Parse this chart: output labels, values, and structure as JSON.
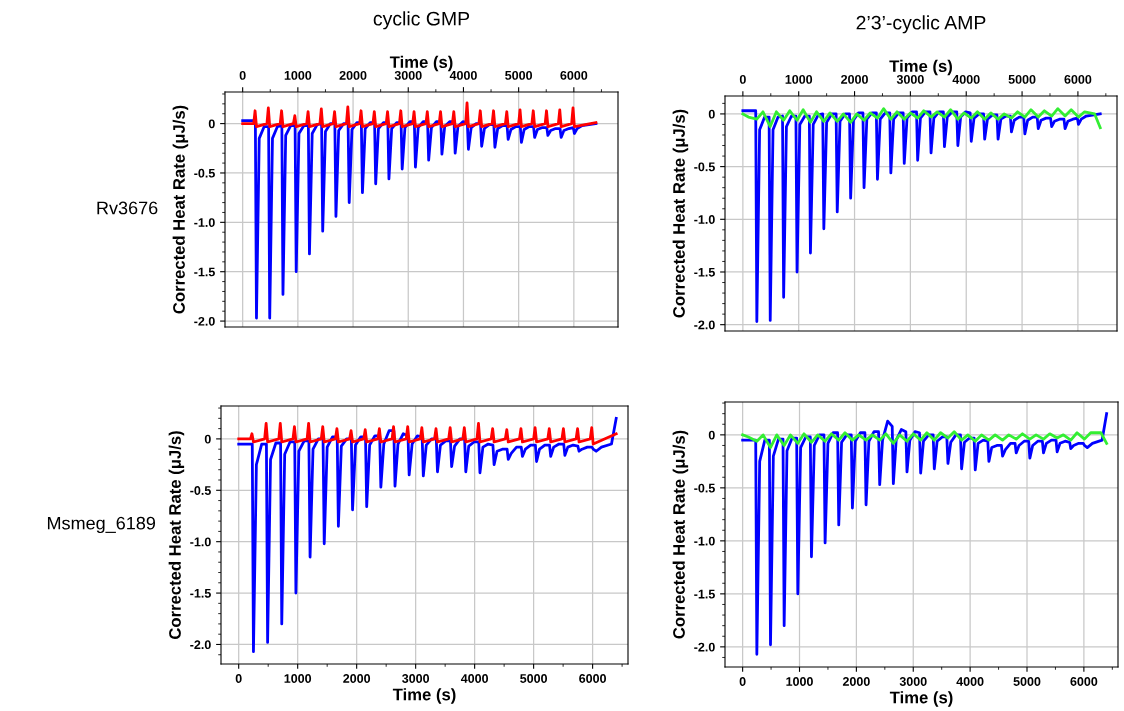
{
  "chart_data": [
    {
      "type": "line",
      "title": "cyclic GMP",
      "xlabel": "Time (s)",
      "ylabel": "Corrected Heat Rate (μJ/s)",
      "annotations": [
        "Rv3676"
      ],
      "xlim": [
        -320,
        6800
      ],
      "xticks": [
        0,
        1000,
        2000,
        3000,
        4000,
        5000,
        6000
      ],
      "ylim": [
        -2.06,
        0.32
      ],
      "yticks": [
        {
          "value": -2.0,
          "label": "-2.0"
        },
        {
          "value": -1.5,
          "label": "-1.5"
        },
        {
          "value": -1.0,
          "label": "-1.0"
        },
        {
          "value": -0.5,
          "label": "-0.5"
        },
        0
      ],
      "grid": true,
      "marker": "none",
      "line_style": "solid",
      "series": [
        {
          "color": "#0000ff",
          "x": [
            0,
            230,
            250,
            300,
            390,
            470,
            490,
            540,
            630,
            710,
            730,
            780,
            870,
            950,
            970,
            1020,
            1110,
            1190,
            1210,
            1260,
            1350,
            1430,
            1450,
            1500,
            1590,
            1670,
            1690,
            1740,
            1830,
            1910,
            1930,
            1980,
            2070,
            2150,
            2170,
            2220,
            2310,
            2390,
            2410,
            2460,
            2550,
            2630,
            2650,
            2700,
            2790,
            2870,
            2890,
            2940,
            3030,
            3110,
            3130,
            3180,
            3270,
            3350,
            3370,
            3420,
            3510,
            3590,
            3610,
            3660,
            3750,
            3830,
            3850,
            3900,
            3990,
            4070,
            4090,
            4140,
            4230,
            4310,
            4330,
            4380,
            4470,
            4550,
            4570,
            4620,
            4710,
            4790,
            4810,
            4860,
            4950,
            5030,
            5050,
            5100,
            5190,
            5270,
            5290,
            5340,
            5430,
            5510,
            5530,
            5580,
            5670,
            5750,
            5770,
            5820,
            5910,
            5990,
            6010,
            6060,
            6150,
            6400
          ],
          "values": [
            0.03,
            0.03,
            -1.97,
            -0.15,
            -0.03,
            -0.03,
            -1.97,
            -0.15,
            -0.03,
            -0.02,
            -1.73,
            -0.12,
            -0.02,
            -0.02,
            -1.5,
            -0.1,
            -0.02,
            -0.02,
            -1.32,
            -0.1,
            -0.01,
            0.0,
            -1.09,
            -0.08,
            0.0,
            0.0,
            -0.94,
            -0.07,
            0.0,
            0.0,
            -0.8,
            -0.06,
            0.01,
            0.01,
            -0.7,
            -0.05,
            0.01,
            0.01,
            -0.61,
            -0.05,
            0.01,
            0.01,
            -0.56,
            -0.05,
            0.01,
            0.01,
            -0.46,
            -0.04,
            0.02,
            0.02,
            -0.44,
            -0.04,
            0.02,
            0.02,
            -0.37,
            -0.04,
            0.02,
            0.02,
            -0.31,
            -0.03,
            0.02,
            0.02,
            -0.3,
            -0.03,
            0.02,
            0.01,
            -0.26,
            -0.04,
            0.0,
            0.0,
            -0.23,
            -0.05,
            -0.01,
            -0.01,
            -0.24,
            -0.05,
            -0.02,
            -0.02,
            -0.16,
            -0.06,
            -0.03,
            -0.03,
            -0.19,
            -0.06,
            -0.03,
            -0.03,
            -0.14,
            -0.06,
            -0.04,
            -0.04,
            -0.12,
            -0.07,
            -0.05,
            -0.05,
            -0.14,
            -0.07,
            -0.05,
            -0.04,
            -0.1,
            -0.05,
            -0.02,
            0.0
          ]
        },
        {
          "color": "#ff0000",
          "x": [
            0,
            200,
            225,
            250,
            440,
            465,
            490,
            680,
            705,
            730,
            920,
            945,
            970,
            1160,
            1185,
            1210,
            1400,
            1425,
            1450,
            1640,
            1665,
            1690,
            1880,
            1905,
            1930,
            2120,
            2145,
            2170,
            2360,
            2385,
            2410,
            2600,
            2625,
            2650,
            2840,
            2865,
            2890,
            3080,
            3105,
            3130,
            3320,
            3345,
            3370,
            3560,
            3585,
            3610,
            3800,
            3825,
            3850,
            4040,
            4065,
            4090,
            4280,
            4305,
            4330,
            4520,
            4545,
            4570,
            4760,
            4785,
            4810,
            5000,
            5025,
            5050,
            5240,
            5265,
            5290,
            5480,
            5505,
            5530,
            5720,
            5745,
            5770,
            5960,
            5985,
            6010,
            6400
          ],
          "values": [
            0.0,
            0.0,
            0.13,
            -0.03,
            0.0,
            0.16,
            -0.03,
            0.0,
            0.13,
            -0.03,
            0.0,
            0.08,
            -0.03,
            0.0,
            0.12,
            -0.03,
            0.0,
            0.15,
            -0.03,
            0.0,
            0.12,
            -0.03,
            0.0,
            0.17,
            -0.03,
            0.0,
            0.13,
            -0.03,
            0.0,
            0.12,
            -0.03,
            0.0,
            0.12,
            -0.03,
            0.0,
            0.13,
            -0.03,
            0.0,
            0.12,
            -0.03,
            0.0,
            0.12,
            -0.03,
            0.0,
            0.12,
            -0.03,
            0.0,
            0.12,
            -0.03,
            0.0,
            0.21,
            -0.03,
            0.0,
            0.13,
            -0.03,
            0.0,
            0.13,
            -0.03,
            0.0,
            0.12,
            -0.03,
            0.0,
            0.14,
            -0.03,
            0.0,
            0.13,
            -0.03,
            0.0,
            0.13,
            -0.03,
            0.0,
            0.14,
            -0.03,
            0.0,
            0.16,
            -0.03,
            0.01
          ]
        }
      ]
    },
    {
      "type": "line",
      "title": "2’3’-cyclic AMP",
      "xlabel": "Time (s)",
      "ylabel": "Corrected Heat Rate (μJ/s)",
      "xlim": [
        -320,
        6700
      ],
      "xticks": [
        0,
        1000,
        2000,
        3000,
        4000,
        5000,
        6000
      ],
      "ylim": [
        -2.06,
        0.17
      ],
      "yticks": [
        {
          "value": -2.0,
          "label": "-2.0"
        },
        {
          "value": -1.5,
          "label": "-1.5"
        },
        {
          "value": -1.0,
          "label": "-1.0"
        },
        {
          "value": -0.5,
          "label": "-0.5"
        },
        0
      ],
      "grid": true,
      "marker": "none",
      "line_style": "solid",
      "series": [
        {
          "color": "#0000ff",
          "x": [
            0,
            230,
            250,
            300,
            390,
            470,
            490,
            540,
            630,
            710,
            730,
            780,
            870,
            950,
            970,
            1020,
            1110,
            1190,
            1210,
            1260,
            1350,
            1430,
            1450,
            1500,
            1590,
            1670,
            1690,
            1740,
            1830,
            1910,
            1930,
            1980,
            2070,
            2150,
            2170,
            2220,
            2310,
            2390,
            2410,
            2460,
            2550,
            2630,
            2650,
            2700,
            2790,
            2870,
            2890,
            2940,
            3030,
            3110,
            3130,
            3180,
            3270,
            3350,
            3370,
            3420,
            3510,
            3590,
            3610,
            3660,
            3750,
            3830,
            3850,
            3900,
            3990,
            4070,
            4090,
            4140,
            4230,
            4310,
            4330,
            4380,
            4470,
            4550,
            4570,
            4620,
            4710,
            4790,
            4810,
            4860,
            4950,
            5030,
            5050,
            5100,
            5190,
            5270,
            5290,
            5340,
            5430,
            5510,
            5530,
            5580,
            5670,
            5750,
            5770,
            5820,
            5910,
            5990,
            6010,
            6060,
            6150,
            6400
          ],
          "values": [
            0.03,
            0.03,
            -1.97,
            -0.15,
            -0.03,
            -0.03,
            -1.96,
            -0.15,
            -0.03,
            -0.02,
            -1.74,
            -0.12,
            -0.02,
            -0.02,
            -1.5,
            -0.1,
            -0.02,
            -0.02,
            -1.32,
            -0.1,
            -0.01,
            0.0,
            -1.09,
            -0.08,
            0.0,
            0.0,
            -0.93,
            -0.07,
            0.0,
            0.0,
            -0.8,
            -0.06,
            0.01,
            0.01,
            -0.7,
            -0.05,
            0.01,
            0.01,
            -0.62,
            -0.05,
            0.01,
            0.01,
            -0.56,
            -0.05,
            0.01,
            0.01,
            -0.47,
            -0.04,
            0.02,
            0.02,
            -0.44,
            -0.04,
            0.02,
            0.02,
            -0.37,
            -0.04,
            0.02,
            0.02,
            -0.31,
            -0.03,
            0.02,
            0.02,
            -0.3,
            -0.03,
            0.02,
            0.01,
            -0.26,
            -0.04,
            0.0,
            0.0,
            -0.24,
            -0.05,
            -0.01,
            -0.01,
            -0.24,
            -0.05,
            -0.02,
            -0.02,
            -0.17,
            -0.06,
            -0.03,
            -0.03,
            -0.19,
            -0.06,
            -0.03,
            -0.03,
            -0.14,
            -0.06,
            -0.04,
            -0.04,
            -0.12,
            -0.07,
            -0.05,
            -0.05,
            -0.14,
            -0.07,
            -0.05,
            -0.04,
            -0.1,
            -0.05,
            -0.02,
            0.0
          ]
        },
        {
          "color": "#33ee33",
          "x": [
            0,
            100,
            250,
            360,
            490,
            600,
            730,
            840,
            970,
            1080,
            1210,
            1320,
            1450,
            1560,
            1690,
            1800,
            1930,
            2040,
            2170,
            2280,
            2410,
            2520,
            2650,
            2760,
            2890,
            3000,
            3130,
            3240,
            3370,
            3480,
            3610,
            3720,
            3850,
            3960,
            4090,
            4200,
            4330,
            4440,
            4570,
            4680,
            4810,
            4920,
            5050,
            5160,
            5290,
            5400,
            5530,
            5640,
            5770,
            5880,
            6010,
            6120,
            6300,
            6400
          ],
          "values": [
            0.0,
            -0.03,
            -0.05,
            0.02,
            -0.12,
            0.02,
            -0.06,
            0.03,
            -0.06,
            0.04,
            -0.08,
            0.02,
            -0.07,
            0.01,
            -0.07,
            0.0,
            -0.08,
            0.0,
            -0.06,
            0.01,
            -0.04,
            0.05,
            -0.05,
            0.02,
            -0.05,
            0.01,
            -0.04,
            0.03,
            -0.03,
            0.02,
            -0.03,
            0.04,
            -0.05,
            0.01,
            -0.04,
            0.02,
            -0.05,
            0.01,
            -0.05,
            0.0,
            -0.04,
            0.02,
            -0.03,
            0.04,
            -0.03,
            0.03,
            -0.02,
            0.05,
            -0.02,
            0.04,
            -0.03,
            0.02,
            0.0,
            -0.13
          ]
        }
      ]
    },
    {
      "type": "line",
      "xlabel": "Time (s)",
      "ylabel": "Corrected Heat Rate (μJ/s)",
      "annotations": [
        "Msmeg_6189"
      ],
      "xlim": [
        -300,
        6600
      ],
      "xticks": [
        0,
        1000,
        2000,
        3000,
        4000,
        5000,
        6000
      ],
      "ylim": [
        -2.19,
        0.32
      ],
      "yticks": [
        {
          "value": -2.0,
          "label": "-2.0"
        },
        {
          "value": -1.5,
          "label": "-1.5"
        },
        {
          "value": -1.0,
          "label": "-1.0"
        },
        {
          "value": -0.5,
          "label": "-0.5"
        },
        0
      ],
      "grid": true,
      "marker": "none",
      "line_style": "solid",
      "series": [
        {
          "color": "#0000ff",
          "x": [
            0,
            230,
            250,
            300,
            390,
            470,
            490,
            540,
            630,
            710,
            730,
            780,
            870,
            950,
            970,
            1020,
            1110,
            1190,
            1210,
            1260,
            1350,
            1430,
            1450,
            1500,
            1590,
            1670,
            1690,
            1740,
            1830,
            1910,
            1930,
            1980,
            2070,
            2150,
            2170,
            2220,
            2310,
            2390,
            2410,
            2460,
            2550,
            2630,
            2650,
            2700,
            2790,
            2870,
            2890,
            2940,
            3030,
            3110,
            3130,
            3180,
            3270,
            3350,
            3370,
            3420,
            3510,
            3590,
            3610,
            3660,
            3750,
            3830,
            3850,
            3900,
            3990,
            4070,
            4090,
            4140,
            4230,
            4310,
            4330,
            4380,
            4470,
            4550,
            4570,
            4620,
            4710,
            4790,
            4810,
            4860,
            4950,
            5030,
            5050,
            5100,
            5190,
            5270,
            5290,
            5340,
            5430,
            5510,
            5530,
            5580,
            5670,
            5750,
            5770,
            5820,
            5910,
            5990,
            6010,
            6060,
            6150,
            6320,
            6400
          ],
          "values": [
            -0.05,
            -0.05,
            -2.07,
            -0.25,
            -0.05,
            -0.05,
            -1.98,
            -0.2,
            -0.04,
            -0.04,
            -1.8,
            -0.15,
            -0.03,
            -0.03,
            -1.5,
            -0.12,
            -0.02,
            -0.02,
            -1.15,
            -0.1,
            0.0,
            0.0,
            -1.02,
            -0.08,
            0.02,
            0.02,
            -0.85,
            -0.07,
            0.0,
            0.0,
            -0.69,
            -0.06,
            0.02,
            0.02,
            -0.66,
            -0.06,
            0.03,
            0.03,
            -0.47,
            -0.05,
            0.08,
            0.08,
            -0.46,
            -0.05,
            0.05,
            0.03,
            -0.35,
            -0.05,
            0.03,
            0.02,
            -0.36,
            -0.06,
            0.0,
            0.0,
            -0.32,
            -0.06,
            -0.02,
            -0.02,
            -0.27,
            -0.07,
            0.0,
            0.0,
            -0.32,
            -0.07,
            -0.03,
            -0.03,
            -0.33,
            -0.08,
            -0.05,
            -0.06,
            -0.25,
            -0.12,
            -0.1,
            -0.1,
            -0.2,
            -0.14,
            -0.08,
            -0.08,
            -0.17,
            -0.1,
            -0.06,
            -0.06,
            -0.22,
            -0.1,
            -0.06,
            -0.06,
            -0.17,
            -0.08,
            -0.05,
            -0.05,
            -0.16,
            -0.08,
            -0.06,
            -0.07,
            -0.12,
            -0.1,
            -0.08,
            -0.08,
            -0.1,
            -0.12,
            -0.08,
            -0.05,
            0.2
          ]
        },
        {
          "color": "#ff0000",
          "x": [
            0,
            200,
            225,
            250,
            440,
            465,
            490,
            680,
            705,
            730,
            920,
            945,
            970,
            1160,
            1185,
            1210,
            1400,
            1425,
            1450,
            1640,
            1665,
            1690,
            1880,
            1905,
            1930,
            2120,
            2145,
            2170,
            2360,
            2385,
            2410,
            2600,
            2625,
            2650,
            2840,
            2865,
            2890,
            3080,
            3105,
            3130,
            3320,
            3345,
            3370,
            3560,
            3585,
            3610,
            3800,
            3825,
            3850,
            4040,
            4065,
            4090,
            4280,
            4305,
            4330,
            4520,
            4545,
            4570,
            4760,
            4785,
            4810,
            5000,
            5025,
            5050,
            5240,
            5265,
            5290,
            5480,
            5505,
            5530,
            5720,
            5745,
            5770,
            5960,
            5985,
            6010,
            6400
          ],
          "values": [
            0.0,
            0.0,
            0.05,
            -0.03,
            0.0,
            0.15,
            -0.03,
            0.0,
            0.15,
            -0.03,
            0.0,
            0.12,
            -0.03,
            0.0,
            0.15,
            -0.03,
            0.0,
            0.12,
            -0.03,
            0.0,
            0.1,
            -0.03,
            0.0,
            0.08,
            -0.03,
            0.0,
            0.09,
            -0.03,
            0.0,
            0.1,
            -0.03,
            0.0,
            0.12,
            -0.03,
            0.0,
            0.12,
            -0.03,
            0.0,
            0.11,
            -0.03,
            0.0,
            0.1,
            -0.03,
            0.0,
            0.11,
            -0.03,
            0.0,
            0.11,
            -0.03,
            0.0,
            0.15,
            -0.03,
            0.0,
            0.1,
            -0.03,
            0.0,
            0.09,
            -0.03,
            0.0,
            0.1,
            -0.03,
            0.0,
            0.11,
            -0.03,
            0.0,
            0.1,
            -0.03,
            0.0,
            0.1,
            -0.03,
            0.0,
            0.1,
            -0.03,
            0.0,
            0.11,
            -0.05,
            0.05
          ]
        }
      ]
    },
    {
      "type": "line",
      "xlabel": "Time (s)",
      "ylabel": "Corrected Heat Rate (μJ/s)",
      "xlim": [
        -310,
        6600
      ],
      "xticks": [
        0,
        1000,
        2000,
        3000,
        4000,
        5000,
        6000
      ],
      "ylim": [
        -2.19,
        0.31
      ],
      "yticks": [
        {
          "value": -2.0,
          "label": "-2.0"
        },
        {
          "value": -1.5,
          "label": "-1.5"
        },
        {
          "value": -1.0,
          "label": "-1.0"
        },
        {
          "value": -0.5,
          "label": "-0.5"
        },
        0
      ],
      "grid": true,
      "marker": "none",
      "line_style": "solid",
      "series": [
        {
          "color": "#0000ff",
          "x": [
            0,
            230,
            250,
            300,
            390,
            470,
            490,
            540,
            630,
            710,
            730,
            780,
            870,
            950,
            970,
            1020,
            1110,
            1190,
            1210,
            1260,
            1350,
            1430,
            1450,
            1500,
            1590,
            1670,
            1690,
            1740,
            1830,
            1910,
            1930,
            1980,
            2070,
            2150,
            2170,
            2220,
            2310,
            2390,
            2410,
            2460,
            2550,
            2630,
            2650,
            2700,
            2790,
            2870,
            2890,
            2940,
            3030,
            3110,
            3130,
            3180,
            3270,
            3350,
            3370,
            3420,
            3510,
            3590,
            3610,
            3660,
            3750,
            3830,
            3850,
            3900,
            3990,
            4070,
            4090,
            4140,
            4230,
            4310,
            4330,
            4380,
            4470,
            4550,
            4570,
            4620,
            4710,
            4790,
            4810,
            4860,
            4950,
            5030,
            5050,
            5100,
            5190,
            5270,
            5290,
            5340,
            5430,
            5510,
            5530,
            5580,
            5670,
            5750,
            5770,
            5820,
            5910,
            5990,
            6010,
            6060,
            6150,
            6320,
            6400
          ],
          "values": [
            -0.05,
            -0.05,
            -2.07,
            -0.25,
            -0.05,
            -0.05,
            -1.98,
            -0.2,
            -0.04,
            -0.04,
            -1.8,
            -0.15,
            -0.03,
            -0.03,
            -1.5,
            -0.12,
            -0.02,
            -0.02,
            -1.15,
            -0.1,
            0.0,
            0.0,
            -1.02,
            -0.08,
            0.02,
            0.02,
            -0.85,
            -0.07,
            0.0,
            0.0,
            -0.69,
            -0.06,
            0.02,
            0.02,
            -0.66,
            -0.06,
            0.03,
            0.03,
            -0.47,
            -0.05,
            0.13,
            0.08,
            -0.46,
            -0.05,
            0.05,
            0.03,
            -0.35,
            -0.05,
            0.03,
            0.02,
            -0.36,
            -0.06,
            0.0,
            0.0,
            -0.32,
            -0.06,
            -0.02,
            -0.02,
            -0.27,
            -0.07,
            0.0,
            0.0,
            -0.32,
            -0.07,
            -0.03,
            -0.03,
            -0.33,
            -0.08,
            -0.05,
            -0.06,
            -0.25,
            -0.12,
            -0.1,
            -0.1,
            -0.2,
            -0.14,
            -0.08,
            -0.08,
            -0.17,
            -0.1,
            -0.06,
            -0.06,
            -0.22,
            -0.1,
            -0.06,
            -0.06,
            -0.17,
            -0.08,
            -0.05,
            -0.05,
            -0.16,
            -0.08,
            -0.06,
            -0.07,
            -0.13,
            -0.1,
            -0.08,
            -0.08,
            -0.1,
            -0.12,
            -0.08,
            -0.05,
            0.2
          ]
        },
        {
          "color": "#33ee33",
          "x": [
            0,
            100,
            250,
            360,
            490,
            600,
            730,
            840,
            970,
            1080,
            1210,
            1320,
            1450,
            1560,
            1690,
            1800,
            1930,
            2040,
            2170,
            2280,
            2410,
            2520,
            2650,
            2760,
            2890,
            3000,
            3130,
            3240,
            3370,
            3480,
            3610,
            3720,
            3850,
            3960,
            4090,
            4200,
            4330,
            4440,
            4570,
            4680,
            4810,
            4920,
            5050,
            5160,
            5290,
            5400,
            5530,
            5640,
            5770,
            5880,
            6010,
            6120,
            6300,
            6400
          ],
          "values": [
            0.0,
            -0.02,
            -0.06,
            0.0,
            -0.12,
            0.0,
            -0.1,
            0.0,
            -0.08,
            0.01,
            -0.07,
            0.0,
            -0.06,
            0.01,
            -0.05,
            0.02,
            -0.05,
            0.0,
            -0.05,
            0.0,
            -0.05,
            0.01,
            -0.08,
            0.0,
            -0.06,
            0.01,
            -0.05,
            0.02,
            -0.05,
            0.02,
            -0.03,
            0.03,
            -0.05,
            0.0,
            -0.06,
            0.0,
            -0.05,
            0.0,
            -0.05,
            0.0,
            -0.04,
            0.01,
            -0.04,
            0.0,
            -0.04,
            0.01,
            -0.03,
            0.0,
            -0.05,
            0.02,
            -0.04,
            0.02,
            0.02,
            -0.08
          ]
        }
      ]
    }
  ]
}
